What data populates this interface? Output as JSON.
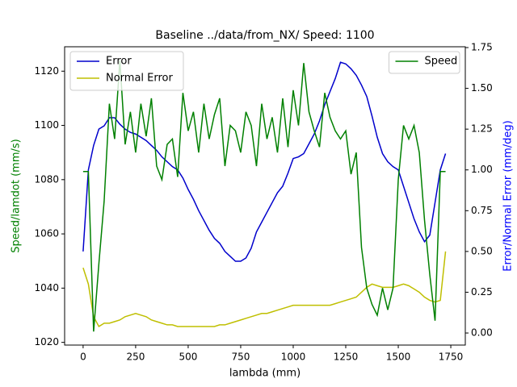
{
  "chart_data": {
    "type": "line",
    "title": "Baseline ../data/from_NX/ Speed: 1100",
    "xlabel": "lambda (mm)",
    "ylabel": "Speed/lamdot (mm/s)",
    "ylabel_color": "green",
    "y2label": "Error/Normal Error (mm/deg)",
    "y2label_color": "blue",
    "x": [
      0,
      25,
      50,
      75,
      100,
      125,
      150,
      175,
      200,
      225,
      250,
      275,
      300,
      325,
      350,
      375,
      400,
      425,
      450,
      475,
      500,
      525,
      550,
      575,
      600,
      625,
      650,
      675,
      700,
      725,
      750,
      775,
      800,
      825,
      850,
      875,
      900,
      925,
      950,
      975,
      1000,
      1025,
      1050,
      1075,
      1100,
      1125,
      1150,
      1175,
      1200,
      1225,
      1250,
      1275,
      1300,
      1325,
      1350,
      1375,
      1400,
      1425,
      1450,
      1475,
      1500,
      1525,
      1550,
      1575,
      1600,
      1625,
      1650,
      1675,
      1700,
      1725
    ],
    "xlim": [
      -88,
      1819
    ],
    "xticks": [
      0,
      250,
      500,
      750,
      1000,
      1250,
      1500,
      1750
    ],
    "ylim": [
      1019,
      1129
    ],
    "yticks": [
      1020,
      1040,
      1060,
      1080,
      1100,
      1120
    ],
    "y2lim": [
      -0.074,
      1.755
    ],
    "y2ticks": [
      {
        "value": 0,
        "label": "0.00"
      },
      {
        "value": 0.25,
        "label": "0.25"
      },
      {
        "value": 0.5,
        "label": "0.50"
      },
      {
        "value": 0.75,
        "label": "0.75"
      },
      {
        "value": 1,
        "label": "1.00"
      },
      {
        "value": 1.25,
        "label": "1.25"
      },
      {
        "value": 1.5,
        "label": "1.50"
      },
      {
        "value": 1.75,
        "label": "1.75"
      }
    ],
    "legend": "upper left",
    "legend2": "upper right",
    "series": [
      {
        "name": "Error",
        "color": "#0000cc",
        "axis": "y2",
        "values": [
          0.5,
          1.0,
          1.15,
          1.25,
          1.27,
          1.32,
          1.32,
          1.28,
          1.25,
          1.23,
          1.22,
          1.2,
          1.18,
          1.15,
          1.12,
          1.08,
          1.05,
          1.02,
          1.0,
          0.95,
          0.88,
          0.82,
          0.75,
          0.69,
          0.63,
          0.58,
          0.55,
          0.5,
          0.47,
          0.44,
          0.44,
          0.46,
          0.52,
          0.62,
          0.68,
          0.74,
          0.8,
          0.86,
          0.9,
          0.98,
          1.07,
          1.08,
          1.1,
          1.16,
          1.22,
          1.3,
          1.4,
          1.48,
          1.56,
          1.66,
          1.65,
          1.62,
          1.58,
          1.52,
          1.45,
          1.33,
          1.2,
          1.1,
          1.05,
          1.02,
          1.0,
          0.9,
          0.8,
          0.7,
          0.62,
          0.56,
          0.6,
          0.8,
          1.0,
          1.1
        ]
      },
      {
        "name": "Normal Error",
        "color": "#bfbf00",
        "axis": "y2",
        "values": [
          0.4,
          0.3,
          0.1,
          0.04,
          0.06,
          0.06,
          0.07,
          0.08,
          0.1,
          0.11,
          0.12,
          0.11,
          0.1,
          0.08,
          0.07,
          0.06,
          0.05,
          0.05,
          0.04,
          0.04,
          0.04,
          0.04,
          0.04,
          0.04,
          0.04,
          0.04,
          0.05,
          0.05,
          0.06,
          0.07,
          0.08,
          0.09,
          0.1,
          0.11,
          0.12,
          0.12,
          0.13,
          0.14,
          0.15,
          0.16,
          0.17,
          0.17,
          0.17,
          0.17,
          0.17,
          0.17,
          0.17,
          0.17,
          0.18,
          0.19,
          0.2,
          0.21,
          0.22,
          0.25,
          0.28,
          0.3,
          0.29,
          0.28,
          0.28,
          0.28,
          0.29,
          0.3,
          0.29,
          0.27,
          0.25,
          0.22,
          0.2,
          0.19,
          0.2,
          0.5
        ]
      },
      {
        "name": "Speed",
        "color": "#008000",
        "axis": "y",
        "values": [
          1083,
          1083,
          1024,
          1049,
          1072,
          1108,
          1095,
          1124,
          1093,
          1105,
          1090,
          1108,
          1096,
          1110,
          1085,
          1080,
          1093,
          1095,
          1081,
          1112,
          1098,
          1105,
          1090,
          1108,
          1095,
          1104,
          1110,
          1085,
          1100,
          1098,
          1090,
          1105,
          1100,
          1085,
          1108,
          1095,
          1103,
          1090,
          1110,
          1092,
          1113,
          1100,
          1123,
          1105,
          1098,
          1092,
          1112,
          1103,
          1098,
          1095,
          1098,
          1082,
          1090,
          1055,
          1040,
          1034,
          1030,
          1040,
          1032,
          1040,
          1080,
          1100,
          1095,
          1100,
          1090,
          1065,
          1045,
          1028,
          1083,
          1083
        ]
      }
    ]
  }
}
